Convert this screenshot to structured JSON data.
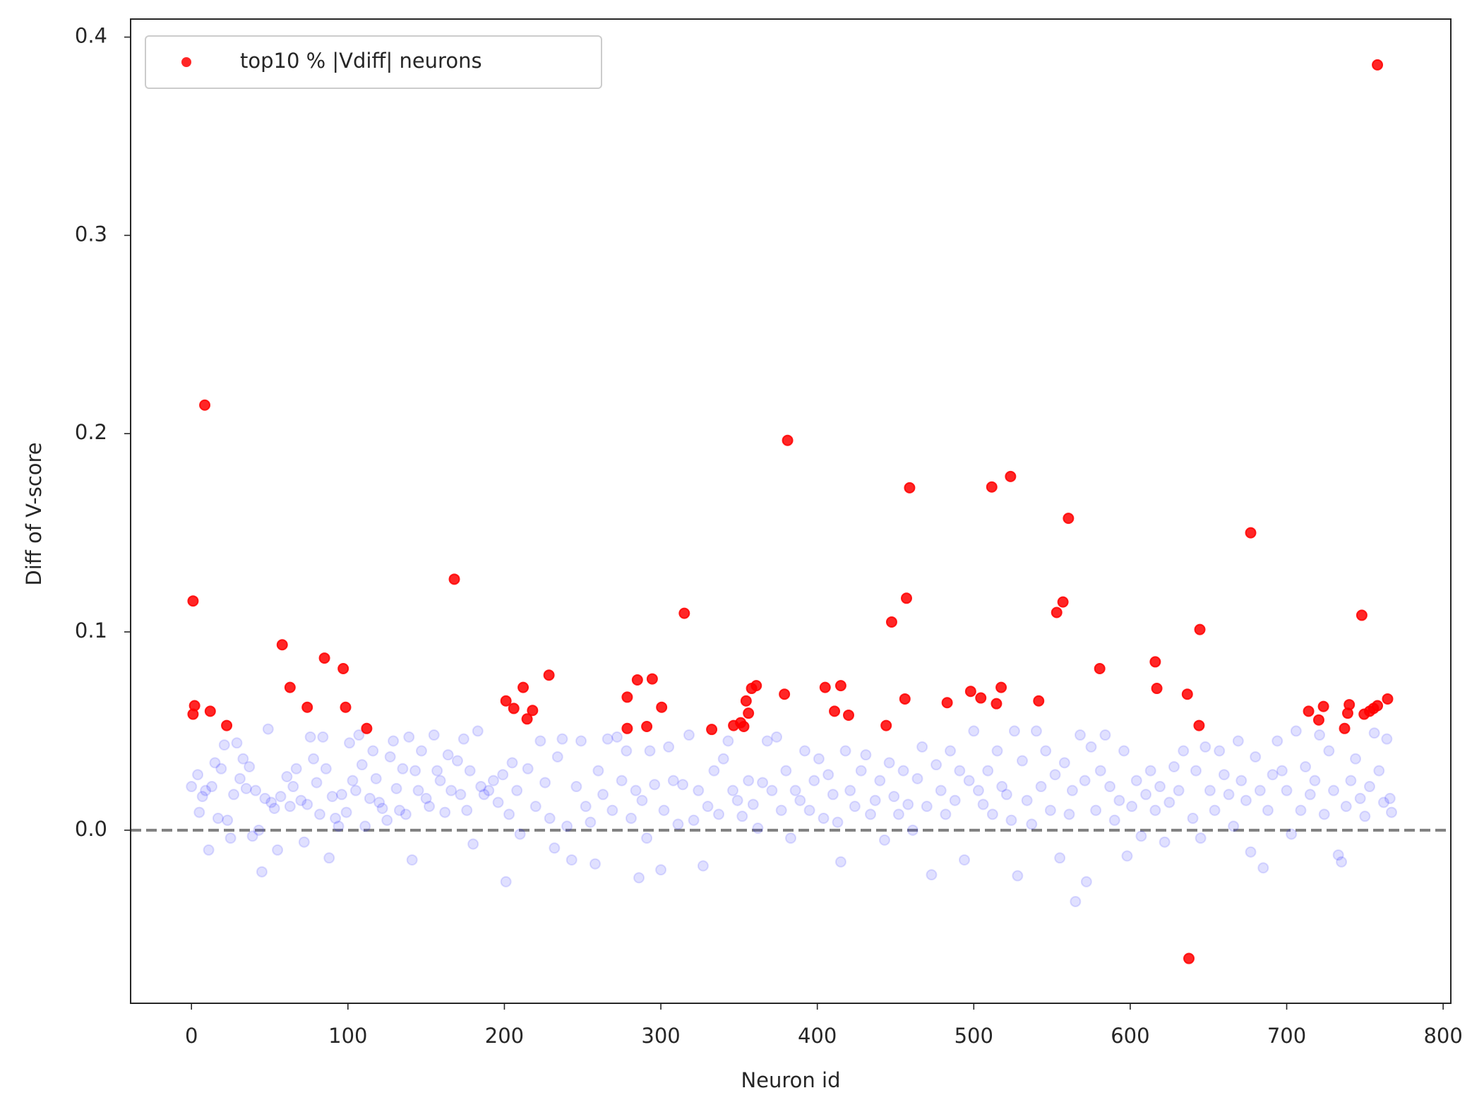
{
  "chart_data": {
    "type": "scatter",
    "xlabel": "Neuron id",
    "ylabel": "Diff of V-score",
    "xlim": [
      -38.9,
      804.9
    ],
    "ylim": [
      -0.0873,
      0.4091
    ],
    "xticks": [
      0,
      100,
      200,
      300,
      400,
      500,
      600,
      700,
      800
    ],
    "yticks": [
      {
        "value": 0,
        "label": "0.0"
      },
      0.1,
      0.2,
      0.3,
      0.4
    ],
    "legend": "upper left",
    "hline": {
      "y": 0,
      "color": "#808080",
      "dashed": true
    },
    "series": [
      {
        "color": "#0000ff",
        "alpha": 0.12,
        "x": [
          0,
          4,
          5,
          7,
          9,
          11,
          13,
          15,
          17,
          19,
          21,
          23,
          25,
          27,
          29,
          31,
          33,
          35,
          37,
          39,
          41,
          43,
          45,
          47,
          49,
          51,
          53,
          55,
          57,
          61,
          63,
          65,
          67,
          70,
          72,
          74,
          76,
          78,
          80,
          82,
          84,
          86,
          88,
          90,
          92,
          94,
          96,
          99,
          101,
          103,
          105,
          107,
          109,
          111,
          114,
          116,
          118,
          120,
          122,
          125,
          127,
          129,
          131,
          133,
          135,
          137,
          139,
          141,
          143,
          145,
          147,
          150,
          152,
          155,
          157,
          159,
          162,
          164,
          166,
          170,
          172,
          174,
          176,
          178,
          180,
          183,
          185,
          187,
          190,
          193,
          196,
          199,
          201,
          203,
          205,
          208,
          210,
          215,
          220,
          223,
          226,
          229,
          232,
          234,
          237,
          240,
          243,
          246,
          249,
          252,
          255,
          258,
          260,
          263,
          266,
          269,
          272,
          275,
          278,
          281,
          284,
          286,
          288,
          291,
          293,
          296,
          300,
          302,
          305,
          308,
          311,
          314,
          318,
          321,
          324,
          327,
          330,
          334,
          337,
          340,
          343,
          346,
          349,
          352,
          356,
          359,
          362,
          365,
          368,
          371,
          374,
          377,
          380,
          383,
          386,
          389,
          392,
          395,
          398,
          401,
          404,
          407,
          410,
          413,
          415,
          418,
          421,
          424,
          428,
          431,
          434,
          437,
          440,
          443,
          446,
          449,
          452,
          455,
          458,
          461,
          464,
          467,
          470,
          473,
          476,
          479,
          482,
          485,
          488,
          491,
          494,
          497,
          500,
          503,
          506,
          509,
          512,
          515,
          518,
          521,
          524,
          526,
          528,
          531,
          534,
          537,
          540,
          543,
          546,
          549,
          552,
          555,
          558,
          561,
          563,
          565,
          568,
          571,
          572,
          575,
          578,
          581,
          584,
          587,
          590,
          593,
          596,
          598,
          601,
          604,
          607,
          610,
          613,
          616,
          619,
          622,
          625,
          628,
          631,
          634,
          640,
          642,
          645,
          648,
          651,
          654,
          657,
          660,
          663,
          666,
          669,
          671,
          674,
          677,
          680,
          683,
          685,
          688,
          691,
          694,
          697,
          700,
          703,
          706,
          709,
          712,
          715,
          718,
          721,
          724,
          727,
          730,
          733,
          735,
          738,
          741,
          744,
          747,
          750,
          753,
          756,
          759,
          762,
          764,
          766,
          767
        ],
        "values": [
          0.022,
          0.028,
          0.009,
          0.017,
          0.02,
          -0.01,
          0.022,
          0.034,
          0.006,
          0.031,
          0.043,
          0.005,
          -0.004,
          0.018,
          0.044,
          0.026,
          0.036,
          0.021,
          0.032,
          -0.003,
          0.02,
          0,
          -0.021,
          0.016,
          0.051,
          0.014,
          0.011,
          -0.01,
          0.017,
          0.027,
          0.012,
          0.022,
          0.031,
          0.015,
          -0.006,
          0.013,
          0.047,
          0.036,
          0.024,
          0.008,
          0.047,
          0.031,
          -0.014,
          0.017,
          0.006,
          0.002,
          0.018,
          0.009,
          0.044,
          0.025,
          0.02,
          0.048,
          0.033,
          0.002,
          0.016,
          0.04,
          0.026,
          0.014,
          0.011,
          0.005,
          0.037,
          0.045,
          0.021,
          0.01,
          0.031,
          0.008,
          0.047,
          -0.015,
          0.03,
          0.02,
          0.04,
          0.016,
          0.012,
          0.048,
          0.03,
          0.025,
          0.009,
          0.038,
          0.02,
          0.035,
          0.018,
          0.046,
          0.01,
          0.03,
          -0.007,
          0.05,
          0.022,
          0.018,
          0.02,
          0.025,
          0.014,
          0.028,
          -0.026,
          0.008,
          0.034,
          0.02,
          -0.002,
          0.031,
          0.012,
          0.045,
          0.024,
          0.006,
          -0.009,
          0.037,
          0.046,
          0.002,
          -0.015,
          0.022,
          0.045,
          0.012,
          0.004,
          -0.017,
          0.03,
          0.018,
          0.046,
          0.01,
          0.047,
          0.025,
          0.04,
          0.006,
          0.02,
          -0.024,
          0.015,
          -0.004,
          0.04,
          0.023,
          -0.02,
          0.01,
          0.042,
          0.025,
          0.003,
          0.023,
          0.048,
          0.005,
          0.02,
          -0.018,
          0.012,
          0.03,
          0.008,
          0.036,
          0.045,
          0.02,
          0.015,
          0.007,
          0.025,
          0.013,
          0.001,
          0.024,
          0.045,
          0.02,
          0.047,
          0.01,
          0.03,
          -0.004,
          0.02,
          0.015,
          0.04,
          0.01,
          0.025,
          0.036,
          0.006,
          0.028,
          0.018,
          0.004,
          -0.016,
          0.04,
          0.02,
          0.012,
          0.03,
          0.038,
          0.008,
          0.015,
          0.025,
          -0.005,
          0.034,
          0.017,
          0.008,
          0.03,
          0.013,
          0,
          0.026,
          0.042,
          0.012,
          -0.0225,
          0.033,
          0.02,
          0.008,
          0.04,
          0.015,
          0.03,
          -0.015,
          0.025,
          0.05,
          0.02,
          0.013,
          0.03,
          0.008,
          0.04,
          0.022,
          0.018,
          0.005,
          0.05,
          -0.023,
          0.035,
          0.015,
          0.003,
          0.05,
          0.022,
          0.04,
          0.01,
          0.028,
          -0.014,
          0.034,
          0.008,
          0.02,
          -0.036,
          0.048,
          0.025,
          -0.026,
          0.042,
          0.01,
          0.03,
          0.048,
          0.022,
          0.005,
          0.015,
          0.04,
          -0.013,
          0.012,
          0.025,
          -0.003,
          0.018,
          0.03,
          0.01,
          0.022,
          -0.006,
          0.014,
          0.032,
          0.02,
          0.04,
          0.006,
          0.03,
          -0.004,
          0.042,
          0.02,
          0.01,
          0.04,
          0.028,
          0.018,
          0.002,
          0.045,
          0.025,
          0.015,
          -0.011,
          0.037,
          0.02,
          -0.019,
          0.01,
          0.028,
          0.045,
          0.03,
          0.02,
          -0.002,
          0.05,
          0.01,
          0.032,
          0.018,
          0.025,
          0.048,
          0.008,
          0.04,
          0.02,
          -0.0125,
          -0.016,
          0.012,
          0.025,
          0.036,
          0.016,
          0.007,
          0.022,
          0.049,
          0.03,
          0.014,
          0.046,
          0.016,
          0.009
        ]
      },
      {
        "name": "top10 % |Vdiff| neurons",
        "color": "#ff0000",
        "alpha": 0.85,
        "x": [
          1,
          1,
          2,
          8.5,
          12,
          22.5,
          58,
          63,
          74,
          85,
          97,
          98.5,
          112,
          168,
          201,
          206,
          212,
          214.5,
          218,
          228.5,
          278.5,
          278.5,
          285,
          291,
          294.5,
          300.5,
          315,
          332.5,
          346.5,
          351,
          353,
          354.5,
          356,
          358,
          361,
          379,
          381,
          405,
          411,
          415,
          420,
          444,
          447.5,
          456,
          457,
          459,
          483,
          498,
          504.5,
          511.5,
          514.5,
          517.5,
          523.5,
          541.5,
          553,
          557,
          560.5,
          580.5,
          616,
          617,
          636.5,
          644,
          644.5,
          677,
          714,
          720.5,
          723.5,
          737,
          739,
          740,
          748,
          749.5,
          753,
          755.5,
          758,
          758,
          764.5,
          637.5
        ],
        "values": [
          0.1156,
          0.0585,
          0.0628,
          0.2144,
          0.06,
          0.0528,
          0.0935,
          0.072,
          0.062,
          0.0868,
          0.0815,
          0.062,
          0.0513,
          0.1266,
          0.0652,
          0.0614,
          0.072,
          0.0561,
          0.0604,
          0.0782,
          0.0671,
          0.0513,
          0.0758,
          0.0523,
          0.0763,
          0.062,
          0.1094,
          0.0508,
          0.0528,
          0.0542,
          0.0523,
          0.0652,
          0.059,
          0.0715,
          0.0729,
          0.0686,
          0.1966,
          0.072,
          0.06,
          0.0729,
          0.058,
          0.0528,
          0.105,
          0.0662,
          0.117,
          0.1727,
          0.0643,
          0.07,
          0.0667,
          0.1731,
          0.0638,
          0.072,
          0.1784,
          0.0652,
          0.1098,
          0.1151,
          0.1573,
          0.0815,
          0.0849,
          0.0715,
          0.0686,
          0.0528,
          0.1012,
          0.15,
          0.06,
          0.0556,
          0.0624,
          0.0513,
          0.059,
          0.0633,
          0.1084,
          0.0585,
          0.06,
          0.0614,
          0.0628,
          0.386,
          0.0662,
          -0.0647
        ]
      }
    ]
  }
}
